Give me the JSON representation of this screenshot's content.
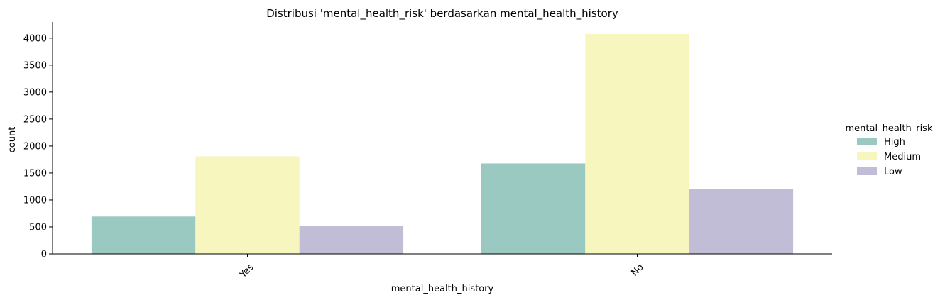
{
  "chart_data": {
    "type": "bar",
    "title": "Distribusi 'mental_health_risk' berdasarkan mental_health_history",
    "xlabel": "mental_health_history",
    "ylabel": "count",
    "categories": [
      "Yes",
      "No"
    ],
    "ylim": [
      0,
      4300
    ],
    "yticks": [
      0,
      500,
      1000,
      1500,
      2000,
      2500,
      3000,
      3500,
      4000
    ],
    "grid": false,
    "legend_title": "mental_health_risk",
    "legend_position": "right",
    "series": [
      {
        "name": "High",
        "color": "#99c9c0",
        "values": [
          693,
          1677
        ]
      },
      {
        "name": "Medium",
        "color": "#f6f6be",
        "values": [
          1809,
          4078
        ]
      },
      {
        "name": "Low",
        "color": "#c2bdd6",
        "values": [
          520,
          1205
        ]
      }
    ]
  }
}
